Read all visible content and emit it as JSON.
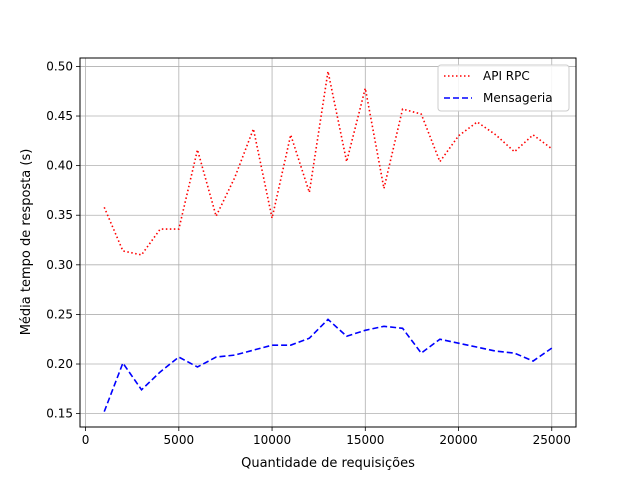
{
  "chart_data": {
    "type": "line",
    "title": "",
    "xlabel": "Quantidade de requisições",
    "ylabel": "Média tempo de resposta (s)",
    "xlim": [
      -300,
      26300
    ],
    "ylim": [
      0.1365,
      0.5085
    ],
    "xticks": [
      0,
      5000,
      10000,
      15000,
      20000,
      25000
    ],
    "yticks": [
      0.15,
      0.2,
      0.25,
      0.3,
      0.35,
      0.4,
      0.45,
      0.5
    ],
    "grid": true,
    "legend_position": "upper right",
    "x": [
      1000,
      2000,
      3000,
      4000,
      5000,
      6000,
      7000,
      8000,
      9000,
      10000,
      11000,
      12000,
      13000,
      14000,
      15000,
      16000,
      17000,
      18000,
      19000,
      20000,
      21000,
      22000,
      23000,
      24000,
      25000
    ],
    "series": [
      {
        "name": "API RPC",
        "color": "#ff0000",
        "dash": "dotted",
        "values": [
          0.358,
          0.314,
          0.31,
          0.336,
          0.336,
          0.416,
          0.349,
          0.388,
          0.437,
          0.347,
          0.431,
          0.373,
          0.495,
          0.404,
          0.478,
          0.377,
          0.457,
          0.452,
          0.404,
          0.43,
          0.444,
          0.431,
          0.414,
          0.431,
          0.417
        ]
      },
      {
        "name": "Mensageria",
        "color": "#0000ff",
        "dash": "dashed",
        "values": [
          0.152,
          0.201,
          0.174,
          0.192,
          0.207,
          0.197,
          0.207,
          0.209,
          0.214,
          0.219,
          0.219,
          0.226,
          0.245,
          0.228,
          0.234,
          0.238,
          0.236,
          0.211,
          0.225,
          0.221,
          0.217,
          0.213,
          0.211,
          0.203,
          0.216
        ]
      }
    ]
  }
}
